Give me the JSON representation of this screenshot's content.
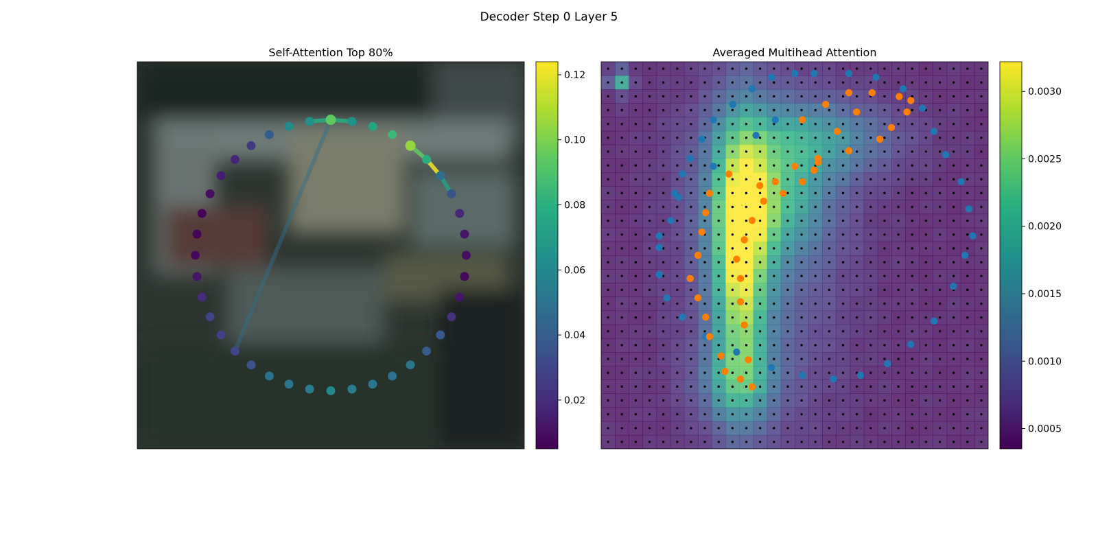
{
  "figure": {
    "title": "Decoder Step 0 Layer 5"
  },
  "chart_data": [
    {
      "type": "scatter",
      "title": "Self-Attention Top 80%",
      "xlabel": "",
      "ylabel": "",
      "axis_visible": false,
      "grid": false,
      "background": "blurred photograph (vehicle scene, dark tones)",
      "colormap": "viridis",
      "colorbar": {
        "min": 0.005,
        "max": 0.124,
        "ticks": [
          0.02,
          0.04,
          0.06,
          0.08,
          0.1,
          0.12
        ],
        "tick_labels": [
          "0.02",
          "0.04",
          "0.06",
          "0.08",
          "0.10",
          "0.12"
        ]
      },
      "points": {
        "count": 40,
        "layout": "circle",
        "center": [
          0.5,
          0.5
        ],
        "radius": 0.35,
        "start_angle_deg": 90,
        "direction": "clockwise",
        "values": [
          0.095,
          0.065,
          0.075,
          0.085,
          0.105,
          0.08,
          0.048,
          0.036,
          0.018,
          0.012,
          0.01,
          0.008,
          0.012,
          0.022,
          0.038,
          0.04,
          0.052,
          0.05,
          0.052,
          0.055,
          0.06,
          0.055,
          0.052,
          0.05,
          0.035,
          0.03,
          0.028,
          0.03,
          0.02,
          0.012,
          0.008,
          0.006,
          0.006,
          0.01,
          0.015,
          0.018,
          0.025,
          0.04,
          0.063,
          0.065
        ]
      },
      "edges": [
        {
          "from": 0,
          "to": 1,
          "value": 0.08
        },
        {
          "from": 0,
          "to": 39,
          "value": 0.08
        },
        {
          "from": 0,
          "to": 25,
          "value": 0.048
        },
        {
          "from": 4,
          "to": 5,
          "value": 0.095
        },
        {
          "from": 5,
          "to": 6,
          "value": 0.122
        },
        {
          "from": 6,
          "to": 7,
          "value": 0.072
        }
      ]
    },
    {
      "type": "heatmap",
      "title": "Averaged Multihead Attention",
      "xlabel": "",
      "ylabel": "",
      "axis_visible": false,
      "grid": false,
      "colormap": "viridis",
      "grid_size": [
        28,
        28
      ],
      "colorbar": {
        "min": 0.00035,
        "max": 0.00322,
        "ticks": [
          0.0005,
          0.001,
          0.0015,
          0.002,
          0.0025,
          0.003
        ],
        "tick_labels": [
          "0.0005",
          "0.0010",
          "0.0015",
          "0.0020",
          "0.0025",
          "0.0030"
        ]
      },
      "hotspots": [
        {
          "cx": 0.36,
          "cy": 0.5,
          "sx": 0.05,
          "sy": 0.24,
          "amp": 0.0023
        },
        {
          "cx": 0.44,
          "cy": 0.36,
          "sx": 0.1,
          "sy": 0.1,
          "amp": 0.0012
        },
        {
          "cx": 0.54,
          "cy": 0.2,
          "sx": 0.15,
          "sy": 0.07,
          "amp": 0.0011
        },
        {
          "cx": 0.35,
          "cy": 0.83,
          "sx": 0.07,
          "sy": 0.07,
          "amp": 0.0009
        },
        {
          "cx": 0.42,
          "cy": 0.5,
          "sx": 0.14,
          "sy": 0.3,
          "amp": 0.0006
        },
        {
          "cx": 0.05,
          "cy": 0.05,
          "sx": 0.02,
          "sy": 0.02,
          "amp": 0.0015
        }
      ],
      "grid_dots": {
        "count_x": 28,
        "count_y": 28,
        "color": "#000000"
      },
      "series": [
        {
          "color": "#1f77b4",
          "points": [
            [
              0.52,
              0.15
            ],
            [
              0.45,
              0.15
            ],
            [
              0.4,
              0.19
            ],
            [
              0.29,
              0.27
            ],
            [
              0.19,
              0.34
            ],
            [
              0.15,
              0.45
            ],
            [
              0.15,
              0.55
            ],
            [
              0.17,
              0.61
            ],
            [
              0.21,
              0.66
            ],
            [
              0.27,
              0.71
            ],
            [
              0.35,
              0.75
            ],
            [
              0.44,
              0.79
            ],
            [
              0.52,
              0.81
            ],
            [
              0.6,
              0.82
            ],
            [
              0.67,
              0.81
            ],
            [
              0.74,
              0.78
            ],
            [
              0.8,
              0.73
            ],
            [
              0.86,
              0.67
            ],
            [
              0.91,
              0.58
            ],
            [
              0.94,
              0.5
            ],
            [
              0.96,
              0.45
            ],
            [
              0.95,
              0.38
            ],
            [
              0.93,
              0.31
            ],
            [
              0.89,
              0.24
            ],
            [
              0.86,
              0.18
            ],
            [
              0.83,
              0.12
            ],
            [
              0.78,
              0.07
            ],
            [
              0.71,
              0.04
            ],
            [
              0.64,
              0.03
            ],
            [
              0.55,
              0.03
            ],
            [
              0.5,
              0.03
            ],
            [
              0.44,
              0.04
            ],
            [
              0.39,
              0.07
            ],
            [
              0.34,
              0.11
            ],
            [
              0.29,
              0.15
            ],
            [
              0.26,
              0.2
            ],
            [
              0.23,
              0.25
            ],
            [
              0.21,
              0.29
            ],
            [
              0.2,
              0.35
            ],
            [
              0.18,
              0.41
            ],
            [
              0.15,
              0.48
            ]
          ]
        },
        {
          "color": "#ff7f00",
          "points": [
            [
              0.52,
              0.15
            ],
            [
              0.58,
              0.11
            ],
            [
              0.64,
              0.08
            ],
            [
              0.7,
              0.08
            ],
            [
              0.77,
              0.09
            ],
            [
              0.8,
              0.1
            ],
            [
              0.79,
              0.13
            ],
            [
              0.75,
              0.17
            ],
            [
              0.72,
              0.2
            ],
            [
              0.64,
              0.23
            ],
            [
              0.56,
              0.26
            ],
            [
              0.55,
              0.28
            ],
            [
              0.52,
              0.31
            ],
            [
              0.47,
              0.34
            ],
            [
              0.41,
              0.32
            ],
            [
              0.33,
              0.29
            ],
            [
              0.28,
              0.34
            ],
            [
              0.27,
              0.39
            ],
            [
              0.26,
              0.44
            ],
            [
              0.25,
              0.5
            ],
            [
              0.23,
              0.56
            ],
            [
              0.25,
              0.61
            ],
            [
              0.27,
              0.66
            ],
            [
              0.28,
              0.71
            ],
            [
              0.31,
              0.76
            ],
            [
              0.32,
              0.8
            ],
            [
              0.36,
              0.82
            ],
            [
              0.39,
              0.84
            ],
            [
              0.38,
              0.77
            ],
            [
              0.37,
              0.68
            ],
            [
              0.36,
              0.62
            ],
            [
              0.36,
              0.56
            ],
            [
              0.35,
              0.51
            ],
            [
              0.37,
              0.46
            ],
            [
              0.39,
              0.41
            ],
            [
              0.42,
              0.36
            ],
            [
              0.45,
              0.31
            ],
            [
              0.5,
              0.27
            ],
            [
              0.56,
              0.25
            ],
            [
              0.61,
              0.18
            ],
            [
              0.66,
              0.13
            ]
          ]
        }
      ]
    }
  ]
}
